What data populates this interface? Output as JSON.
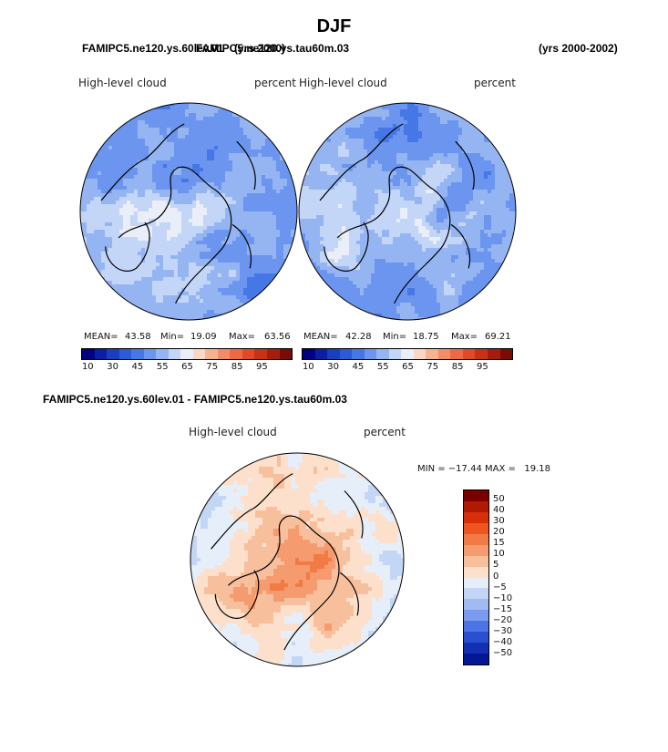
{
  "page": {
    "title": "DJF",
    "left_header": "FAMIPC5.ne120.ys.60lev.01",
    "overlap_header": "FAMIPC5.ne120.ys.tau60m.03",
    "years_a": "(yrs 2000)",
    "years_b": "(yrs 2000-2002)"
  },
  "chart_data": [
    {
      "type": "heatmap",
      "projection": "north-polar-stereographic",
      "case": "FAMIPC5.ne120.ys.60lev.01",
      "variable": "High-level cloud",
      "units": "percent",
      "stats": {
        "mean_label": "MEAN=",
        "mean": "43.58",
        "min_label": "Min=",
        "min": "19.09",
        "max_label": "Max=",
        "max": "63.56"
      },
      "colorbar": {
        "ticks": [
          "10",
          "30",
          "45",
          "55",
          "65",
          "75",
          "85",
          "95"
        ],
        "colors": [
          "#000080",
          "#0b1fa5",
          "#1a3ec0",
          "#2d5ad6",
          "#4677e6",
          "#6b95ee",
          "#95b5f2",
          "#c3d6f7",
          "#e9eef8",
          "#fad7c2",
          "#f6b391",
          "#f38d68",
          "#ee6a44",
          "#e04a26",
          "#c73116",
          "#a51d0c",
          "#7a0b05"
        ]
      }
    },
    {
      "type": "heatmap",
      "projection": "north-polar-stereographic",
      "case": "FAMIPC5.ne120.ys.tau60m.03",
      "variable": "High-level cloud",
      "units": "percent",
      "stats": {
        "mean_label": "MEAN=",
        "mean": "42.28",
        "min_label": "Min=",
        "min": "18.75",
        "max_label": "Max=",
        "max": "69.21"
      },
      "colorbar": {
        "ticks": [
          "10",
          "30",
          "45",
          "55",
          "65",
          "75",
          "85",
          "95"
        ],
        "colors": [
          "#000080",
          "#0b1fa5",
          "#1a3ec0",
          "#2d5ad6",
          "#4677e6",
          "#6b95ee",
          "#95b5f2",
          "#c3d6f7",
          "#e9eef8",
          "#fad7c2",
          "#f6b391",
          "#f38d68",
          "#ee6a44",
          "#e04a26",
          "#c73116",
          "#a51d0c",
          "#7a0b05"
        ]
      }
    },
    {
      "type": "heatmap",
      "projection": "north-polar-stereographic",
      "title": "FAMIPC5.ne120.ys.60lev.01 - FAMIPC5.ne120.ys.tau60m.03",
      "variable": "High-level cloud",
      "units": "percent",
      "stats": {
        "text": "MIN = −17.44 MAX =   19.18",
        "min": -17.44,
        "max": 19.18
      },
      "colorbar": {
        "ticks": [
          "50",
          "40",
          "30",
          "20",
          "15",
          "10",
          "5",
          "0",
          "−5",
          "−10",
          "−15",
          "−20",
          "−30",
          "−40",
          "−50"
        ],
        "colors": [
          "#7a0000",
          "#b01a05",
          "#d6300a",
          "#ee5420",
          "#f27a45",
          "#f59b6f",
          "#f8bf9d",
          "#fce0cb",
          "#e6eef9",
          "#c4d6f6",
          "#a0bbf2",
          "#7b9cee",
          "#4d74e4",
          "#2a4fd0",
          "#1330b2",
          "#041896"
        ]
      }
    }
  ]
}
